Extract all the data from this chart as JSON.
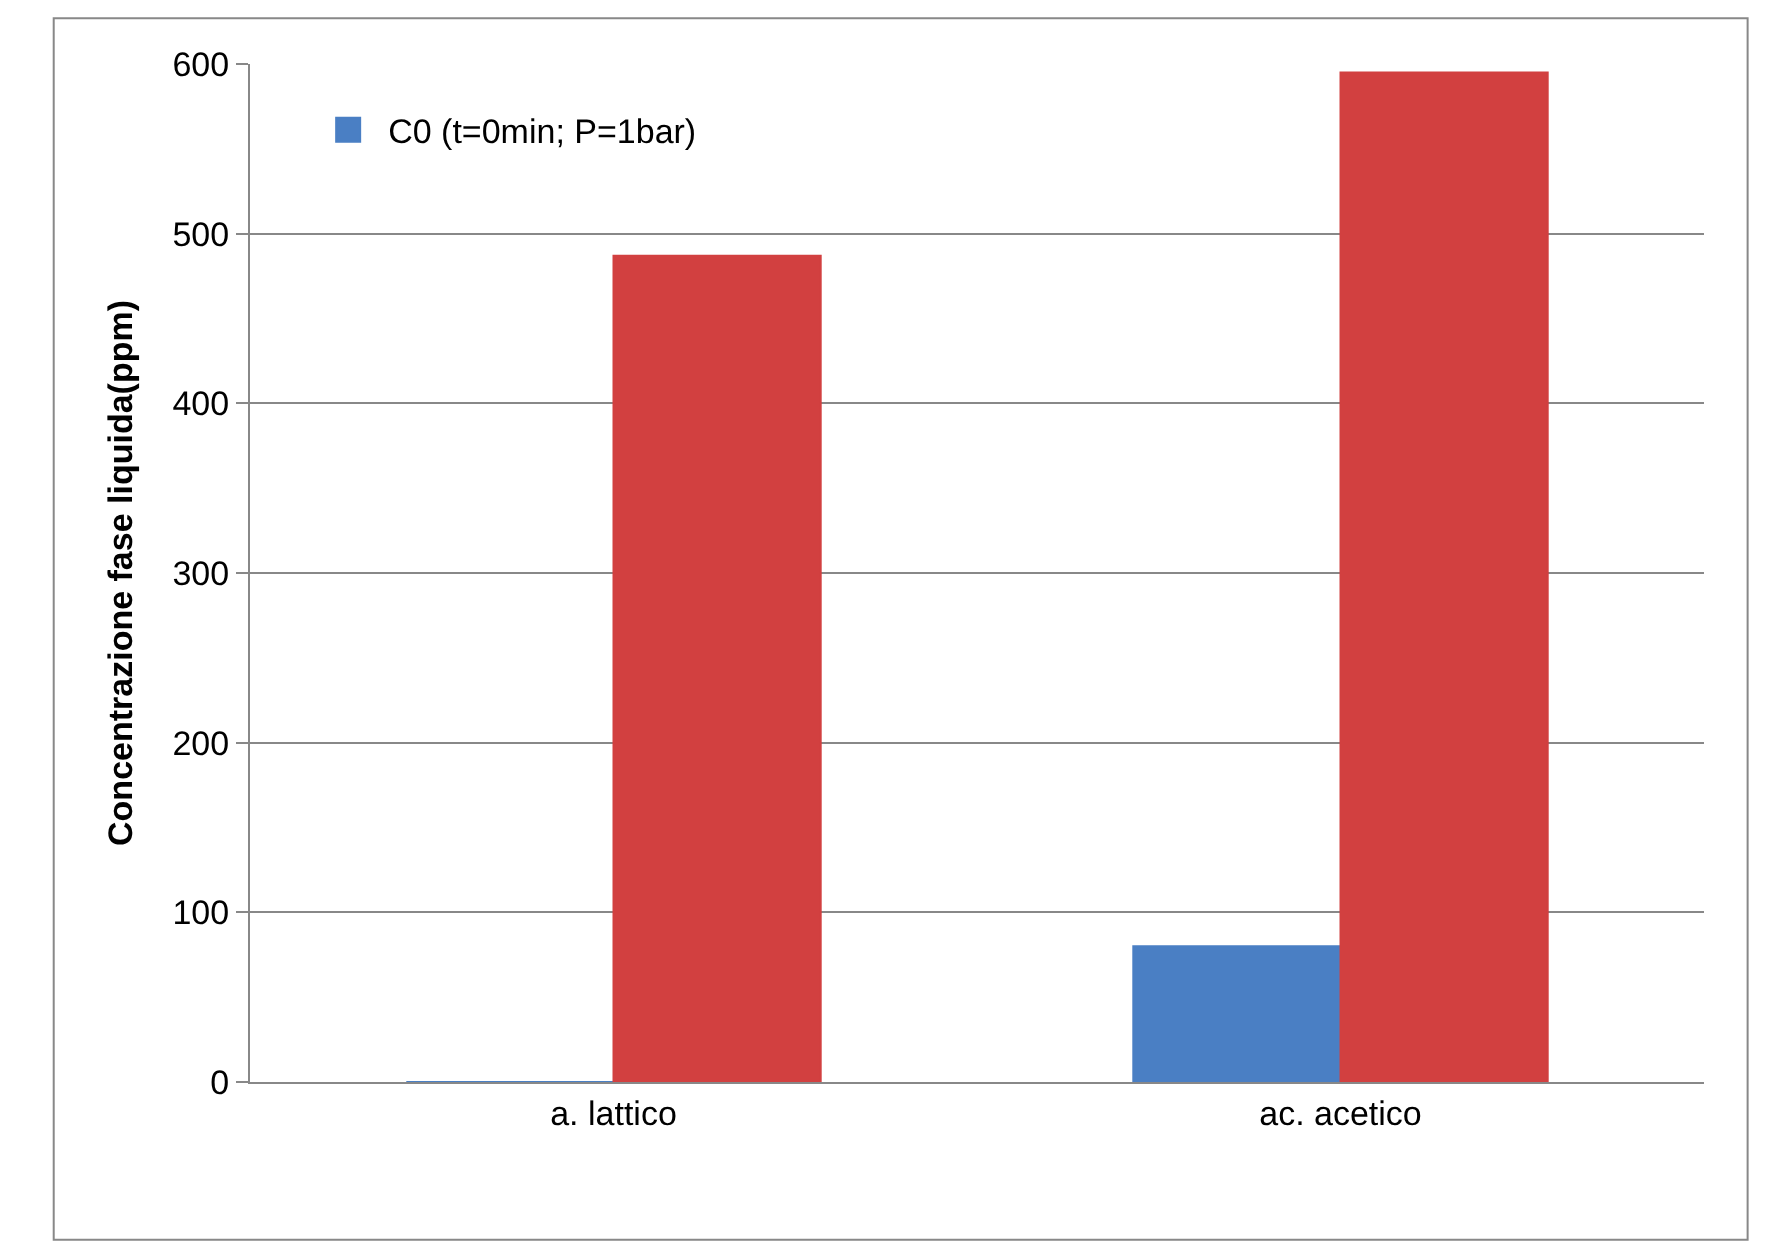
{
  "chart_data": {
    "type": "bar",
    "ylabel": "Concentrazione fase liquida(ppm)",
    "categories": [
      "a. lattico",
      "ac. acetico"
    ],
    "series": [
      {
        "name": "C0 (t=0min; P=1bar)",
        "color": "#4a7fc4",
        "values": [
          0,
          80
        ]
      },
      {
        "color": "#d24040",
        "values": [
          487,
          595
        ]
      }
    ],
    "ylim": [
      0,
      600
    ],
    "yticks": [
      0,
      100,
      200,
      300,
      400,
      500,
      600
    ],
    "grid": "y",
    "legend": "top left"
  }
}
